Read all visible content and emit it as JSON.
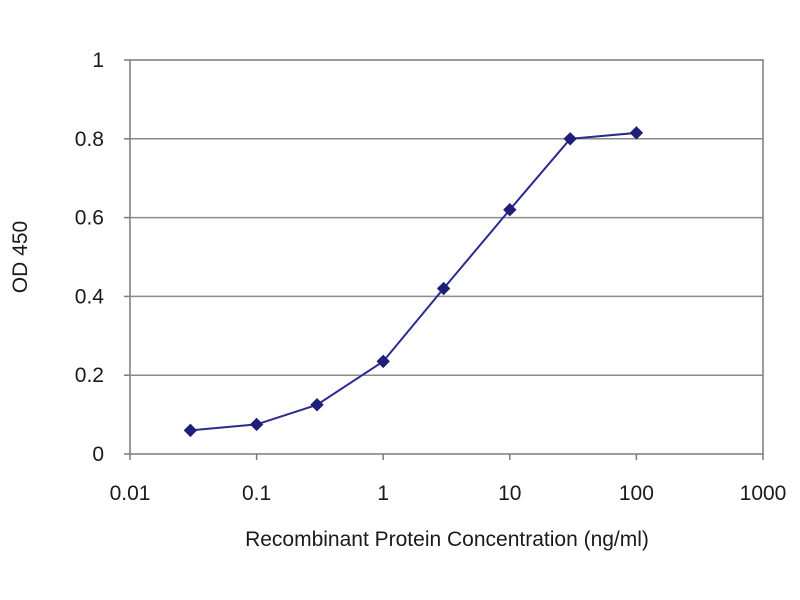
{
  "chart_data": {
    "type": "line",
    "title": "",
    "xlabel": "Recombinant Protein Concentration (ng/ml)",
    "ylabel": "OD 450",
    "x_scale": "log",
    "xlim": [
      0.01,
      1000
    ],
    "ylim": [
      0,
      1
    ],
    "x_ticks": [
      "0.01",
      "0.1",
      "1",
      "10",
      "100",
      "1000"
    ],
    "y_ticks": [
      "0",
      "0.2",
      "0.4",
      "0.6",
      "0.8",
      "1"
    ],
    "grid": "horizontal",
    "series": [
      {
        "color": "#2b2b8f",
        "x": [
          0.03,
          0.1,
          0.3,
          1,
          3,
          10,
          30,
          100
        ],
        "y": [
          0.06,
          0.075,
          0.125,
          0.235,
          0.42,
          0.62,
          0.8,
          0.815
        ]
      }
    ]
  }
}
